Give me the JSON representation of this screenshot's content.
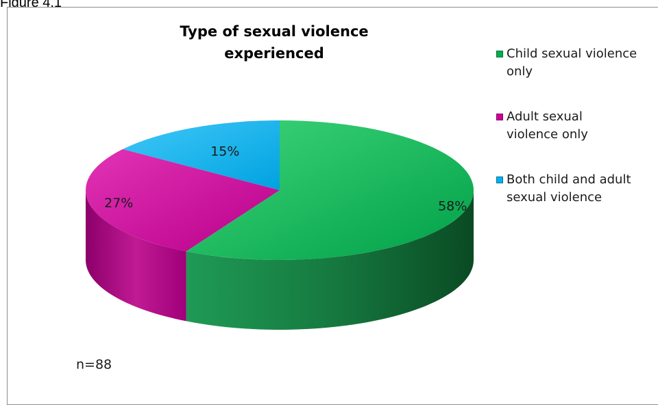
{
  "figure_label": "Figure 4.1",
  "n_label": "n=88",
  "chart_data": {
    "type": "pie",
    "title": "Type of sexual violence experienced",
    "title_lines": [
      "Type of sexual violence",
      "experienced"
    ],
    "legend_position": "right",
    "slices": [
      {
        "label": "Child sexual violence only",
        "legend_lines": [
          "Child sexual violence",
          "only"
        ],
        "value": 58,
        "display": "58%",
        "color": "#00b050"
      },
      {
        "label": "Adult sexual violence only",
        "legend_lines": [
          "Adult sexual",
          "violence only"
        ],
        "value": 27,
        "display": "27%",
        "color": "#cc0099"
      },
      {
        "label": "Both child and adult sexual violence",
        "legend_lines": [
          "Both child and adult",
          "sexual violence"
        ],
        "value": 15,
        "display": "15%",
        "color": "#00b0f0"
      }
    ]
  }
}
